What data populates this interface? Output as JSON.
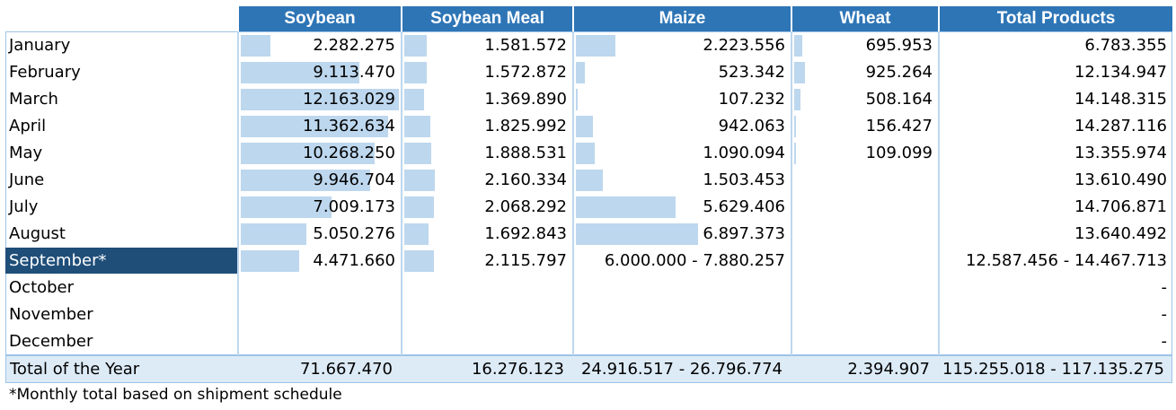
{
  "chart_data": {
    "type": "table",
    "columns": [
      "",
      "Soybean",
      "Soybean Meal",
      "Maize",
      "Wheat",
      "Total Products"
    ],
    "series_max": {
      "Soybean": 12163029,
      "Soybean Meal": 2160334,
      "Maize": 6897373,
      "Wheat": 925264
    },
    "rows": [
      {
        "month": "January",
        "soybean": "2.282.275",
        "soybean_v": 2282275,
        "meal": "1.581.572",
        "meal_v": 1581572,
        "maize": "2.223.556",
        "maize_v": 2223556,
        "wheat": "695.953",
        "wheat_v": 695953,
        "total": "6.783.355"
      },
      {
        "month": "February",
        "soybean": "9.113.470",
        "soybean_v": 9113470,
        "meal": "1.572.872",
        "meal_v": 1572872,
        "maize": "523.342",
        "maize_v": 523342,
        "wheat": "925.264",
        "wheat_v": 925264,
        "total": "12.134.947"
      },
      {
        "month": "March",
        "soybean": "12.163.029",
        "soybean_v": 12163029,
        "meal": "1.369.890",
        "meal_v": 1369890,
        "maize": "107.232",
        "maize_v": 107232,
        "wheat": "508.164",
        "wheat_v": 508164,
        "total": "14.148.315"
      },
      {
        "month": "April",
        "soybean": "11.362.634",
        "soybean_v": 11362634,
        "meal": "1.825.992",
        "meal_v": 1825992,
        "maize": "942.063",
        "maize_v": 942063,
        "wheat": "156.427",
        "wheat_v": 156427,
        "total": "14.287.116"
      },
      {
        "month": "May",
        "soybean": "10.268.250",
        "soybean_v": 10268250,
        "meal": "1.888.531",
        "meal_v": 1888531,
        "maize": "1.090.094",
        "maize_v": 1090094,
        "wheat": "109.099",
        "wheat_v": 109099,
        "total": "13.355.974"
      },
      {
        "month": "June",
        "soybean": "9.946.704",
        "soybean_v": 9946704,
        "meal": "2.160.334",
        "meal_v": 2160334,
        "maize": "1.503.453",
        "maize_v": 1503453,
        "wheat": "",
        "wheat_v": 0,
        "total": "13.610.490"
      },
      {
        "month": "July",
        "soybean": "7.009.173",
        "soybean_v": 7009173,
        "meal": "2.068.292",
        "meal_v": 2068292,
        "maize": "5.629.406",
        "maize_v": 5629406,
        "wheat": "",
        "wheat_v": 0,
        "total": "14.706.871"
      },
      {
        "month": "August",
        "soybean": "5.050.276",
        "soybean_v": 5050276,
        "meal": "1.692.843",
        "meal_v": 1692843,
        "maize": "6.897.373",
        "maize_v": 6897373,
        "wheat": "",
        "wheat_v": 0,
        "total": "13.640.492"
      },
      {
        "month": "September*",
        "soybean": "4.471.660",
        "soybean_v": 4471660,
        "meal": "2.115.797",
        "meal_v": 2115797,
        "maize": "6.000.000 - 7.880.257",
        "maize_v": 0,
        "wheat": "",
        "wheat_v": 0,
        "total": "12.587.456 - 14.467.713",
        "highlight": true
      },
      {
        "month": "October",
        "soybean": "",
        "soybean_v": 0,
        "meal": "",
        "meal_v": 0,
        "maize": "",
        "maize_v": 0,
        "wheat": "",
        "wheat_v": 0,
        "total": "-"
      },
      {
        "month": "November",
        "soybean": "",
        "soybean_v": 0,
        "meal": "",
        "meal_v": 0,
        "maize": "",
        "maize_v": 0,
        "wheat": "",
        "wheat_v": 0,
        "total": "-"
      },
      {
        "month": "December",
        "soybean": "",
        "soybean_v": 0,
        "meal": "",
        "meal_v": 0,
        "maize": "",
        "maize_v": 0,
        "wheat": "",
        "wheat_v": 0,
        "total": "-"
      }
    ],
    "total_row": {
      "label": "Total of the Year",
      "soybean": "71.667.470",
      "meal": "16.276.123",
      "maize": "24.916.517 - 26.796.774",
      "wheat": "2.394.907",
      "total": "115.255.018 - 117.135.275"
    },
    "colors": {
      "header": "#2e75b6",
      "bar": "#bdd7ee",
      "highlight": "#1f4e79",
      "total_bg": "#ddebf7"
    }
  },
  "footnote": "*Monthly total based on shipment schedule"
}
